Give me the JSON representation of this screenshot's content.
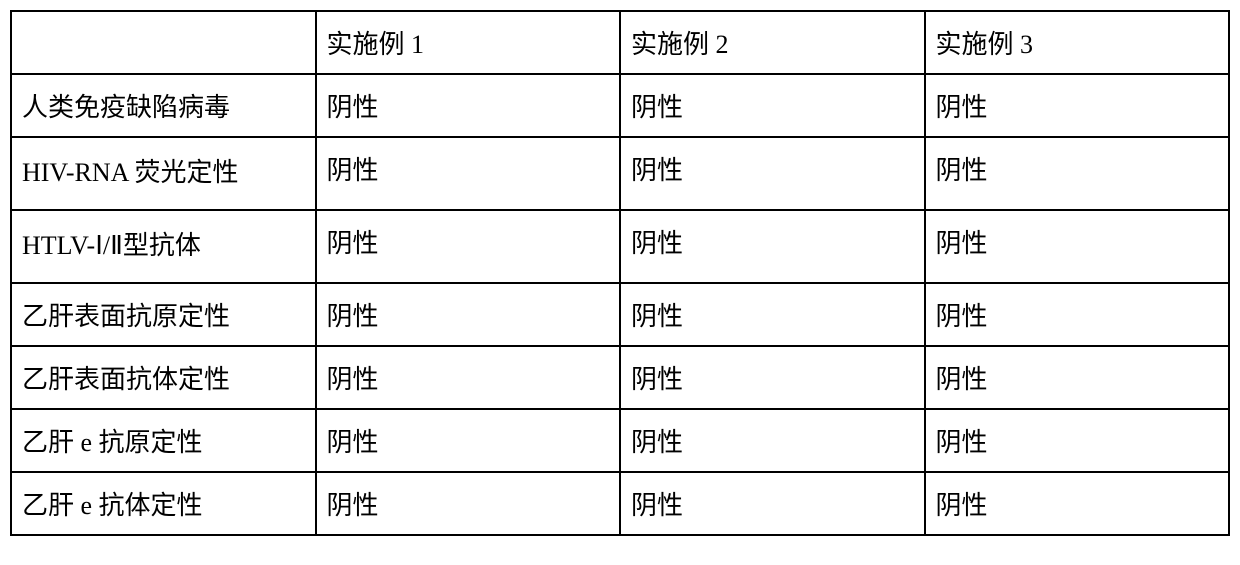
{
  "table": {
    "columns": [
      "",
      "实施例 1",
      "实施例 2",
      "实施例 3"
    ],
    "rows": [
      {
        "label": "人类免疫缺陷病毒",
        "values": [
          "阴性",
          "阴性",
          "阴性"
        ],
        "multiline": false
      },
      {
        "label": "HIV-RNA 荧光定性",
        "values": [
          "阴性",
          "阴性",
          "阴性"
        ],
        "multiline": true
      },
      {
        "label": "HTLV-Ⅰ/Ⅱ型抗体",
        "values": [
          "阴性",
          "阴性",
          "阴性"
        ],
        "multiline": true
      },
      {
        "label": "乙肝表面抗原定性",
        "values": [
          "阴性",
          "阴性",
          "阴性"
        ],
        "multiline": false
      },
      {
        "label": "乙肝表面抗体定性",
        "values": [
          "阴性",
          "阴性",
          "阴性"
        ],
        "multiline": false
      },
      {
        "label": "乙肝 e 抗原定性",
        "values": [
          "阴性",
          "阴性",
          "阴性"
        ],
        "multiline": false
      },
      {
        "label": "乙肝 e 抗体定性",
        "values": [
          "阴性",
          "阴性",
          "阴性"
        ],
        "multiline": false
      }
    ],
    "border_color": "#000000",
    "background_color": "#ffffff",
    "text_color": "#000000",
    "font_size": 26,
    "col_widths_pct": [
      25,
      25,
      25,
      25
    ]
  }
}
